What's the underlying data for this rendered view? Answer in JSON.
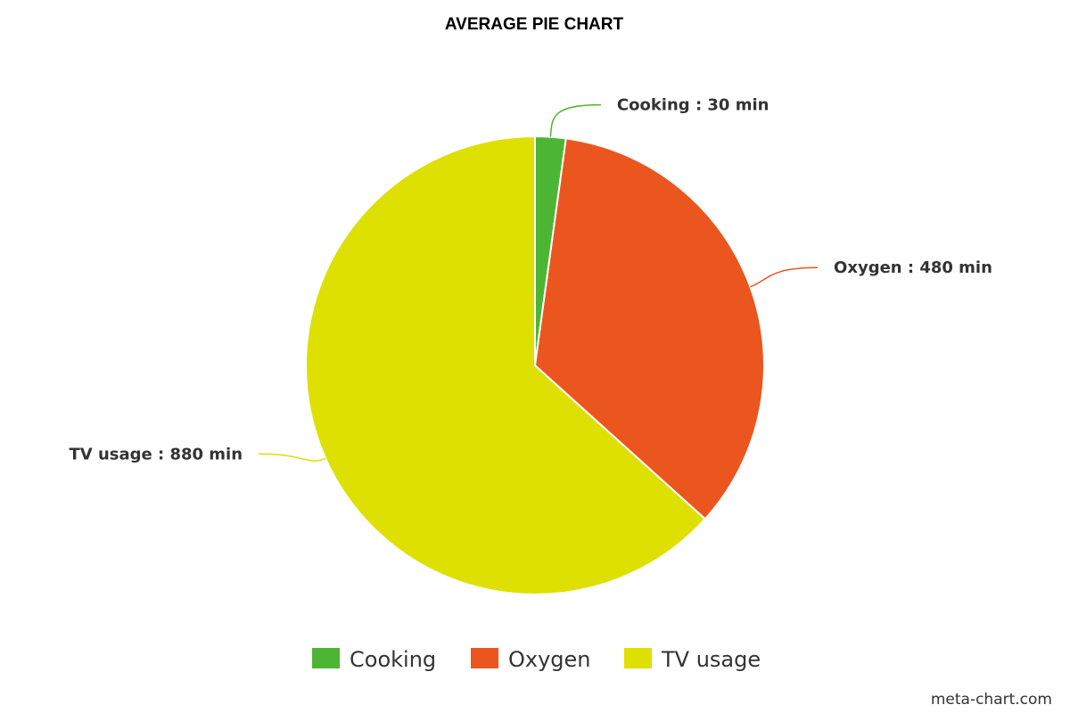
{
  "chart_data": {
    "type": "pie",
    "title": "AVERAGE PIE CHART",
    "slices": [
      {
        "name": "Cooking",
        "value": 30,
        "label": "Cooking : 30 min",
        "color": "#4db534"
      },
      {
        "name": "Oxygen",
        "value": 480,
        "label": "Oxygen : 480 min",
        "color": "#eb561e"
      },
      {
        "name": "TV usage",
        "value": 880,
        "label": "TV usage : 880 min",
        "color": "#dde000"
      }
    ],
    "legend": {
      "placement": "bottom",
      "entries": [
        "Cooking",
        "Oxygen",
        "TV usage"
      ]
    }
  },
  "credit": "meta-chart.com"
}
